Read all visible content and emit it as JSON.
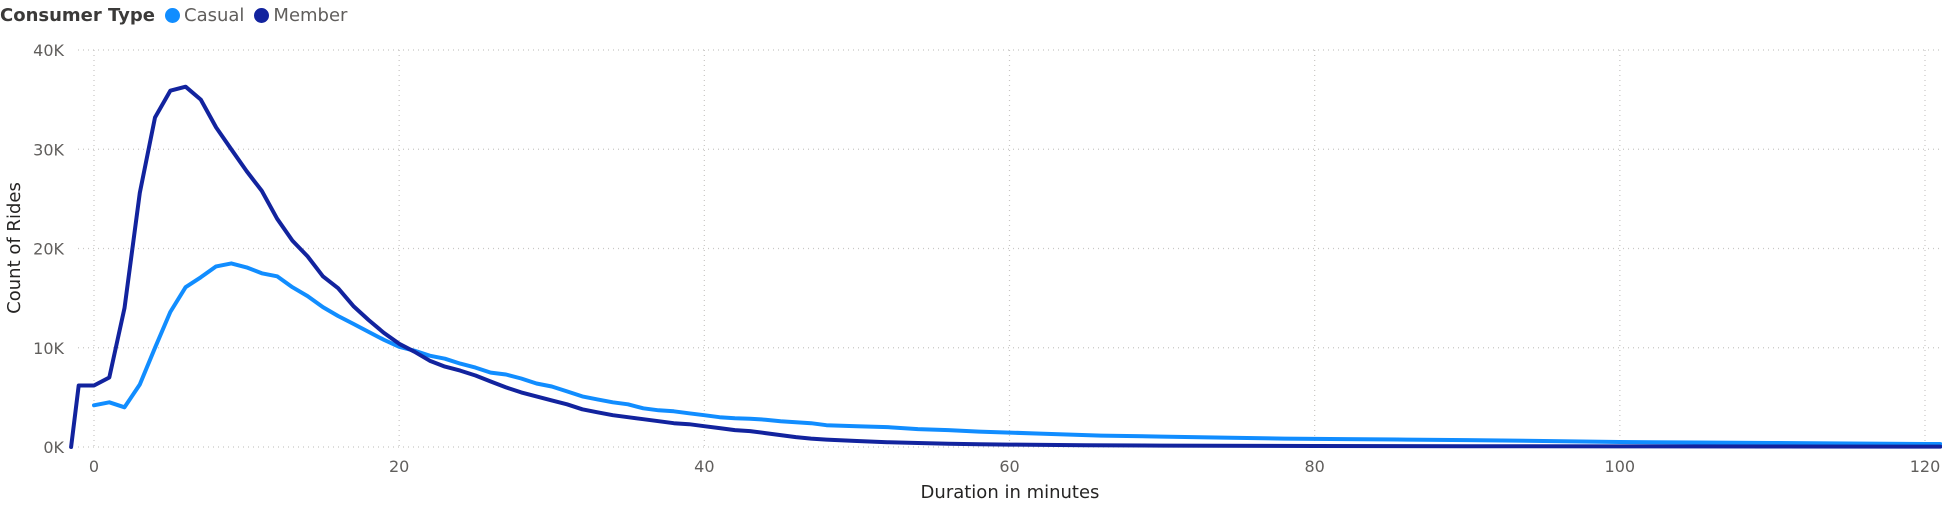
{
  "chart_data": {
    "type": "line",
    "legend": {
      "title": "Consumer Type",
      "placement": "top-left"
    },
    "xlabel": "Duration in minutes",
    "ylabel": "Count of Rides",
    "xlim": [
      -1.5,
      121
    ],
    "ylim": [
      0,
      40000
    ],
    "x_ticks": [
      "0",
      "20",
      "40",
      "60",
      "80",
      "100",
      "120"
    ],
    "x_tick_values": [
      0,
      20,
      40,
      60,
      80,
      100,
      120
    ],
    "y_ticks": [
      "0K",
      "10K",
      "20K",
      "30K",
      "40K"
    ],
    "y_tick_values": [
      0,
      10000,
      20000,
      30000,
      40000
    ],
    "grid": true,
    "series": [
      {
        "name": "Casual",
        "color": "#118dff",
        "points": [
          [
            0,
            4200
          ],
          [
            1,
            4500
          ],
          [
            2,
            4000
          ],
          [
            3,
            6300
          ],
          [
            4,
            10000
          ],
          [
            5,
            13600
          ],
          [
            6,
            16100
          ],
          [
            7,
            17100
          ],
          [
            8,
            18200
          ],
          [
            9,
            18500
          ],
          [
            10,
            18100
          ],
          [
            11,
            17500
          ],
          [
            12,
            17200
          ],
          [
            13,
            16100
          ],
          [
            14,
            15200
          ],
          [
            15,
            14100
          ],
          [
            16,
            13200
          ],
          [
            17,
            12400
          ],
          [
            18,
            11600
          ],
          [
            19,
            10800
          ],
          [
            20,
            10100
          ],
          [
            21,
            9700
          ],
          [
            22,
            9200
          ],
          [
            23,
            8900
          ],
          [
            24,
            8400
          ],
          [
            25,
            8000
          ],
          [
            26,
            7500
          ],
          [
            27,
            7300
          ],
          [
            28,
            6900
          ],
          [
            29,
            6400
          ],
          [
            30,
            6100
          ],
          [
            31,
            5600
          ],
          [
            32,
            5100
          ],
          [
            33,
            4800
          ],
          [
            34,
            4500
          ],
          [
            35,
            4300
          ],
          [
            36,
            3900
          ],
          [
            37,
            3700
          ],
          [
            38,
            3600
          ],
          [
            39,
            3400
          ],
          [
            40,
            3200
          ],
          [
            41,
            3000
          ],
          [
            42,
            2900
          ],
          [
            43,
            2850
          ],
          [
            44,
            2750
          ],
          [
            45,
            2600
          ],
          [
            46,
            2500
          ],
          [
            47,
            2400
          ],
          [
            48,
            2200
          ],
          [
            49,
            2150
          ],
          [
            50,
            2100
          ],
          [
            52,
            2000
          ],
          [
            54,
            1800
          ],
          [
            56,
            1700
          ],
          [
            58,
            1550
          ],
          [
            60,
            1450
          ],
          [
            62,
            1350
          ],
          [
            64,
            1250
          ],
          [
            66,
            1150
          ],
          [
            70,
            1050
          ],
          [
            74,
            950
          ],
          [
            78,
            850
          ],
          [
            82,
            800
          ],
          [
            86,
            750
          ],
          [
            90,
            700
          ],
          [
            95,
            600
          ],
          [
            100,
            500
          ],
          [
            105,
            450
          ],
          [
            110,
            400
          ],
          [
            115,
            350
          ],
          [
            120,
            300
          ],
          [
            121,
            300
          ]
        ]
      },
      {
        "name": "Member",
        "color": "#12239e",
        "points": [
          [
            -1.5,
            0
          ],
          [
            -1,
            6200
          ],
          [
            0,
            6200
          ],
          [
            1,
            7000
          ],
          [
            2,
            14000
          ],
          [
            3,
            25600
          ],
          [
            4,
            33200
          ],
          [
            5,
            35900
          ],
          [
            6,
            36300
          ],
          [
            7,
            35000
          ],
          [
            8,
            32200
          ],
          [
            9,
            30000
          ],
          [
            10,
            27800
          ],
          [
            11,
            25800
          ],
          [
            12,
            23000
          ],
          [
            13,
            20800
          ],
          [
            14,
            19200
          ],
          [
            15,
            17200
          ],
          [
            16,
            16000
          ],
          [
            17,
            14200
          ],
          [
            18,
            12800
          ],
          [
            19,
            11500
          ],
          [
            20,
            10400
          ],
          [
            21,
            9600
          ],
          [
            22,
            8700
          ],
          [
            23,
            8100
          ],
          [
            24,
            7700
          ],
          [
            25,
            7200
          ],
          [
            26,
            6600
          ],
          [
            27,
            6000
          ],
          [
            28,
            5500
          ],
          [
            29,
            5100
          ],
          [
            30,
            4700
          ],
          [
            31,
            4300
          ],
          [
            32,
            3800
          ],
          [
            33,
            3500
          ],
          [
            34,
            3200
          ],
          [
            35,
            3000
          ],
          [
            36,
            2800
          ],
          [
            37,
            2600
          ],
          [
            38,
            2400
          ],
          [
            39,
            2300
          ],
          [
            40,
            2100
          ],
          [
            41,
            1900
          ],
          [
            42,
            1700
          ],
          [
            43,
            1600
          ],
          [
            44,
            1400
          ],
          [
            45,
            1200
          ],
          [
            46,
            1000
          ],
          [
            47,
            850
          ],
          [
            48,
            750
          ],
          [
            50,
            600
          ],
          [
            52,
            480
          ],
          [
            54,
            400
          ],
          [
            56,
            330
          ],
          [
            58,
            280
          ],
          [
            60,
            240
          ],
          [
            65,
            180
          ],
          [
            70,
            140
          ],
          [
            80,
            100
          ],
          [
            90,
            80
          ],
          [
            100,
            60
          ],
          [
            110,
            50
          ],
          [
            120,
            40
          ],
          [
            121,
            40
          ]
        ]
      }
    ]
  }
}
